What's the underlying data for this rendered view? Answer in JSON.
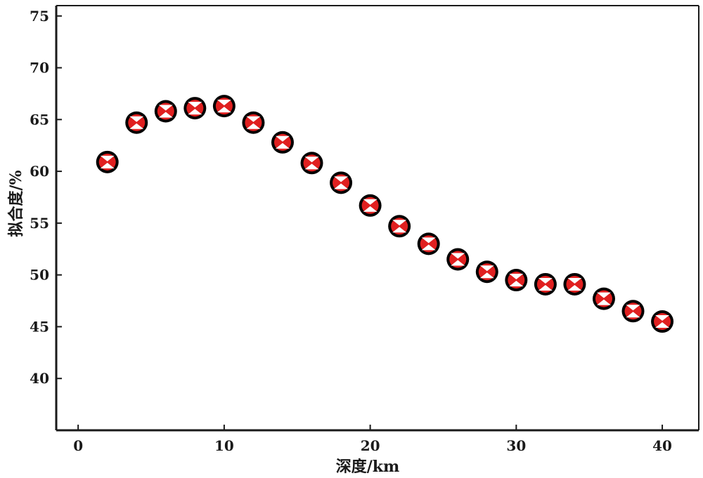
{
  "chart_data": {
    "type": "scatter",
    "xlabel": "深度/km",
    "ylabel": "拟合度/%",
    "xlim": [
      -1.5,
      42.5
    ],
    "ylim": [
      35,
      76
    ],
    "x_ticks": [
      0,
      10,
      20,
      30,
      40
    ],
    "y_ticks": [
      40,
      45,
      50,
      55,
      60,
      65,
      70,
      75
    ],
    "grid": false,
    "legend": "none",
    "marker_outline_color": "#000000",
    "marker_fill_color": "#e02020",
    "series": [
      {
        "x": [
          2,
          4,
          6,
          8,
          10,
          12,
          14,
          16,
          18,
          20,
          22,
          24,
          26,
          28,
          30,
          32,
          34,
          36,
          38,
          40
        ],
        "y": [
          60.9,
          64.7,
          65.8,
          66.1,
          66.3,
          64.7,
          62.8,
          60.8,
          58.9,
          56.7,
          54.7,
          53.0,
          51.5,
          50.3,
          49.5,
          49.1,
          49.1,
          47.7,
          46.5,
          45.5
        ]
      }
    ]
  }
}
